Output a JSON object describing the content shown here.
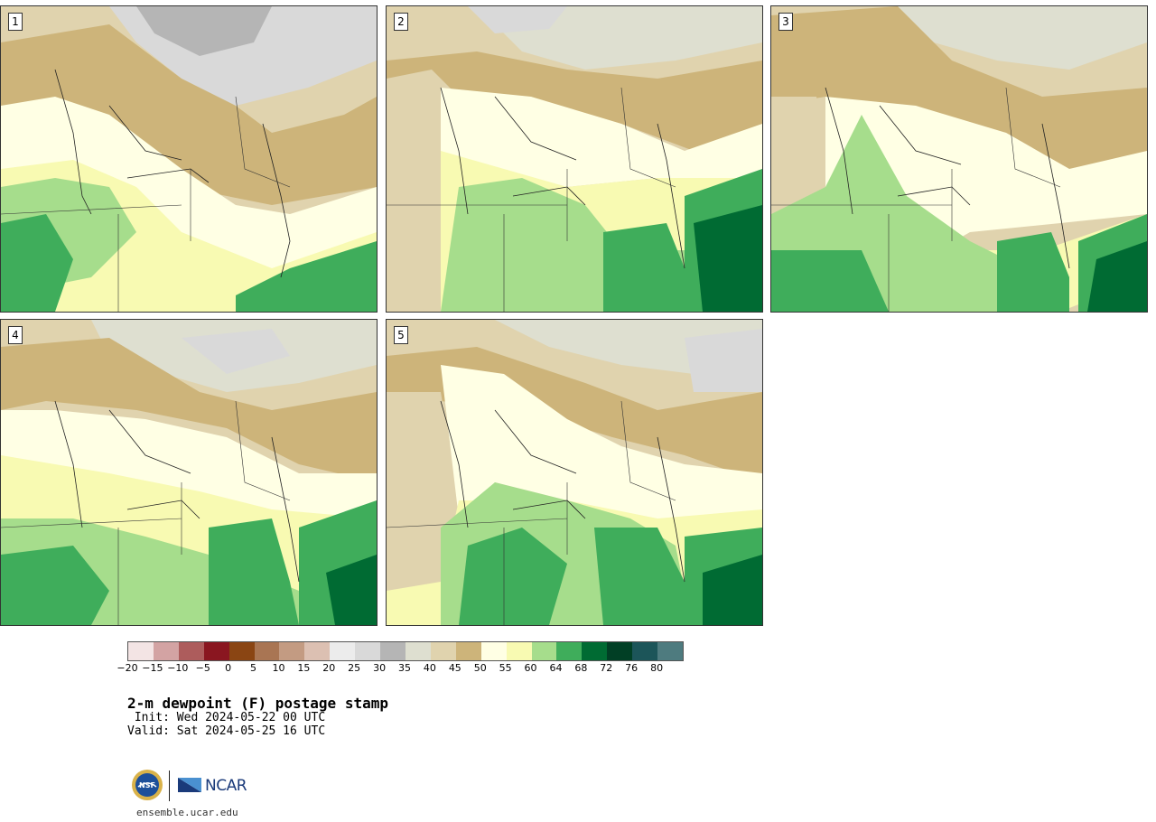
{
  "panels": [
    {
      "label": "1"
    },
    {
      "label": "2"
    },
    {
      "label": "3"
    },
    {
      "label": "4"
    },
    {
      "label": "5"
    }
  ],
  "colorbar": {
    "colors": [
      "#f3e4e4",
      "#d3a3a3",
      "#ad5c5c",
      "#8a1620",
      "#8a4513",
      "#a97553",
      "#c39b82",
      "#dcc0b2",
      "#ececec",
      "#d9d9d9",
      "#b5b5b5",
      "#dedfd0",
      "#e0d3ae",
      "#cdb47a",
      "#ffffe4",
      "#f8fab2",
      "#a6dd8c",
      "#3fad5b",
      "#006b33",
      "#013f25",
      "#1c5559",
      "#4e7b7f"
    ],
    "ticks": [
      "−20",
      "−15",
      "−10",
      "−5",
      "0",
      "5",
      "10",
      "15",
      "20",
      "25",
      "30",
      "35",
      "40",
      "45",
      "50",
      "55",
      "60",
      "64",
      "68",
      "72",
      "76",
      "80"
    ]
  },
  "title": "2-m dewpoint (F) postage stamp",
  "init": " Init: Wed 2024-05-22 00 UTC",
  "valid": "Valid: Sat 2024-05-25 16 UTC",
  "logos": {
    "nsf_icon": "nsf-logo",
    "ncar_text": "NCAR"
  },
  "website": "ensemble.ucar.edu"
}
